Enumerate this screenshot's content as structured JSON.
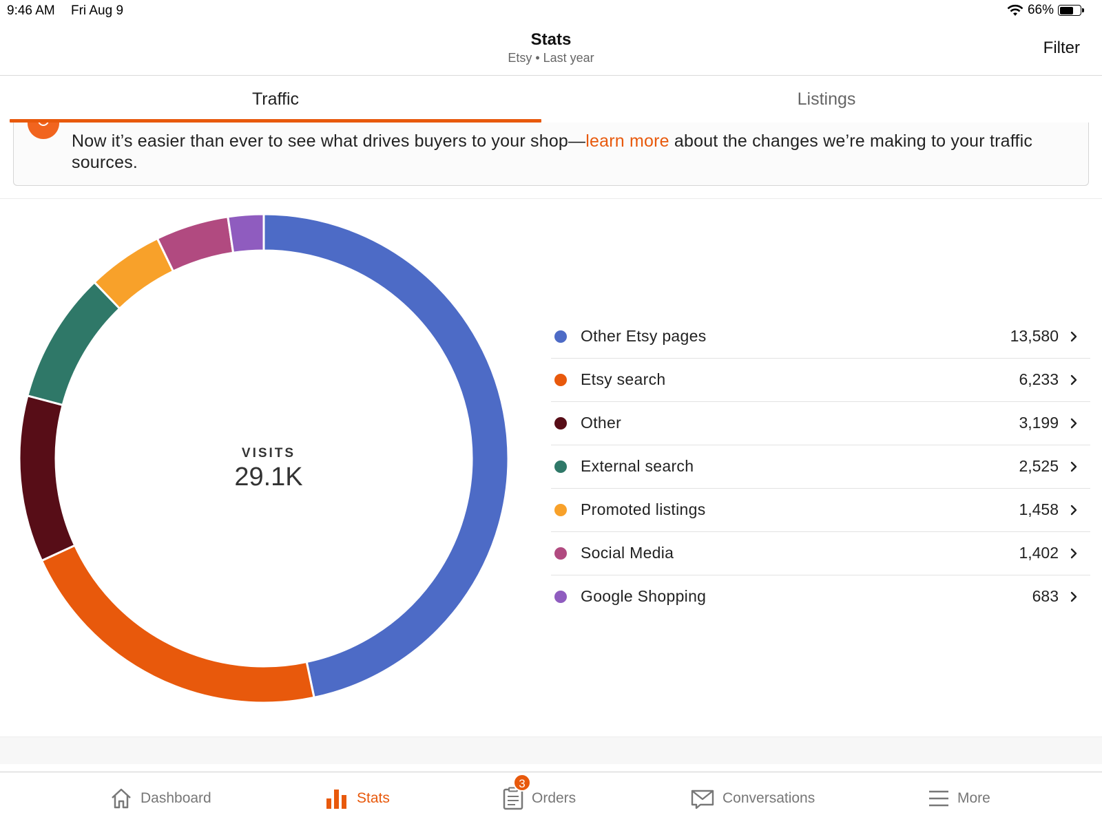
{
  "status_bar": {
    "time": "9:46 AM",
    "date": "Fri Aug 9",
    "battery": "66%",
    "battery_level": 0.66
  },
  "header": {
    "title": "Stats",
    "subtitle": "Etsy • Last year",
    "filter_label": "Filter"
  },
  "tabs": [
    {
      "label": "Traffic",
      "active": true
    },
    {
      "label": "Listings",
      "active": false
    }
  ],
  "banner": {
    "text_before": "Now it’s easier than ever to see what drives buyers to your shop—",
    "link_text": "learn more",
    "text_after": " about the changes we’re making to your traffic sources."
  },
  "chart_data": {
    "type": "pie",
    "donut": true,
    "center_label": "VISITS",
    "center_value": "29.1K",
    "categories": [
      "Other Etsy pages",
      "Etsy search",
      "Other",
      "External search",
      "Promoted listings",
      "Social Media",
      "Google Shopping"
    ],
    "values": [
      13580,
      6233,
      3199,
      2525,
      1458,
      1402,
      683
    ],
    "display_values": [
      "13,580",
      "6,233",
      "3,199",
      "2,525",
      "1,458",
      "1,402",
      "683"
    ],
    "colors": [
      "#4d6bc6",
      "#e8590c",
      "#570d17",
      "#2f7868",
      "#f8a12a",
      "#b14a80",
      "#8f5cbf"
    ]
  },
  "bottom_nav": {
    "items": [
      {
        "label": "Dashboard",
        "icon": "house-icon",
        "active": false
      },
      {
        "label": "Stats",
        "icon": "bar-chart-icon",
        "active": true
      },
      {
        "label": "Orders",
        "icon": "clipboard-icon",
        "active": false,
        "badge": "3"
      },
      {
        "label": "Conversations",
        "icon": "envelope-icon",
        "active": false
      },
      {
        "label": "More",
        "icon": "menu-icon",
        "active": false
      }
    ]
  }
}
